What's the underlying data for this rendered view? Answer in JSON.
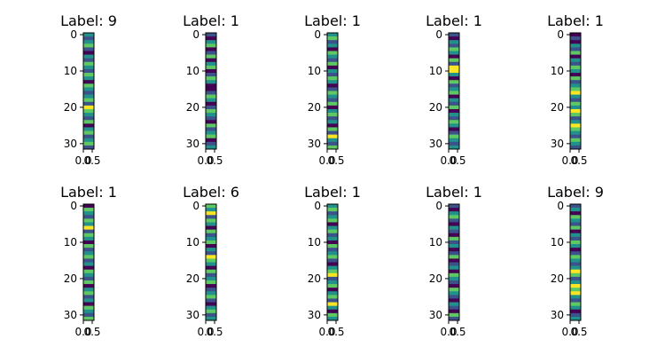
{
  "chart_data": {
    "type": "heatmap",
    "colormap": [
      "#440154",
      "#3b528b",
      "#21918c",
      "#5ec962",
      "#fde725"
    ],
    "cell_grid": {
      "rows": 32,
      "cols": 1
    },
    "y_ticks": [
      "0",
      "10",
      "20",
      "30"
    ],
    "x_ticks": [
      "0.0",
      "0.5"
    ],
    "grid": false,
    "legend": "none",
    "panels": [
      {
        "title": "Label: 9",
        "values": [
          2,
          1,
          2,
          3,
          1,
          0,
          2,
          1,
          3,
          2,
          1,
          3,
          2,
          0,
          3,
          2,
          1,
          2,
          3,
          1,
          4,
          3,
          2,
          1,
          3,
          0,
          2,
          3,
          1,
          2,
          3,
          1
        ]
      },
      {
        "title": "Label: 1",
        "values": [
          1,
          0,
          2,
          3,
          0,
          1,
          3,
          0,
          2,
          3,
          0,
          1,
          3,
          2,
          0,
          0,
          1,
          3,
          2,
          0,
          1,
          3,
          2,
          1,
          0,
          3,
          1,
          2,
          3,
          0,
          1,
          2
        ]
      },
      {
        "title": "Label: 1",
        "values": [
          2,
          3,
          1,
          2,
          0,
          3,
          2,
          1,
          3,
          0,
          2,
          1,
          3,
          2,
          0,
          1,
          3,
          2,
          1,
          3,
          0,
          2,
          3,
          1,
          2,
          0,
          3,
          1,
          4,
          2,
          1,
          3
        ]
      },
      {
        "title": "Label: 1",
        "values": [
          1,
          0,
          2,
          1,
          3,
          2,
          0,
          3,
          1,
          4,
          4,
          2,
          0,
          3,
          1,
          2,
          3,
          0,
          2,
          1,
          3,
          0,
          2,
          1,
          3,
          2,
          0,
          1,
          3,
          2,
          1,
          2
        ]
      },
      {
        "title": "Label: 1",
        "values": [
          0,
          1,
          0,
          2,
          1,
          3,
          0,
          2,
          1,
          3,
          2,
          0,
          3,
          1,
          2,
          3,
          4,
          2,
          1,
          3,
          2,
          4,
          3,
          1,
          2,
          4,
          3,
          2,
          1,
          3,
          2,
          1
        ]
      },
      {
        "title": "Label: 1",
        "values": [
          0,
          3,
          2,
          1,
          3,
          2,
          4,
          1,
          3,
          2,
          0,
          3,
          1,
          2,
          3,
          1,
          2,
          0,
          3,
          2,
          1,
          3,
          0,
          2,
          3,
          1,
          2,
          0,
          3,
          2,
          1,
          3
        ]
      },
      {
        "title": "Label: 6",
        "values": [
          3,
          2,
          4,
          1,
          3,
          2,
          0,
          3,
          1,
          2,
          3,
          0,
          2,
          1,
          4,
          3,
          2,
          0,
          3,
          1,
          2,
          3,
          0,
          1,
          2,
          3,
          1,
          0,
          2,
          3,
          1,
          2
        ]
      },
      {
        "title": "Label: 1",
        "values": [
          2,
          3,
          1,
          2,
          3,
          0,
          2,
          3,
          1,
          2,
          0,
          3,
          1,
          2,
          3,
          1,
          0,
          2,
          3,
          4,
          1,
          2,
          3,
          0,
          2,
          3,
          1,
          4,
          2,
          0,
          3,
          2
        ]
      },
      {
        "title": "Label: 1",
        "values": [
          1,
          0,
          2,
          3,
          1,
          0,
          2,
          1,
          0,
          3,
          1,
          2,
          0,
          1,
          3,
          0,
          1,
          2,
          0,
          3,
          2,
          1,
          0,
          3,
          2,
          1,
          0,
          2,
          1,
          0,
          3,
          1
        ]
      },
      {
        "title": "Label: 9",
        "values": [
          1,
          2,
          0,
          3,
          2,
          1,
          3,
          0,
          2,
          1,
          3,
          2,
          0,
          1,
          3,
          2,
          1,
          2,
          4,
          3,
          1,
          2,
          4,
          3,
          4,
          2,
          1,
          3,
          2,
          0,
          1,
          2
        ]
      }
    ]
  }
}
